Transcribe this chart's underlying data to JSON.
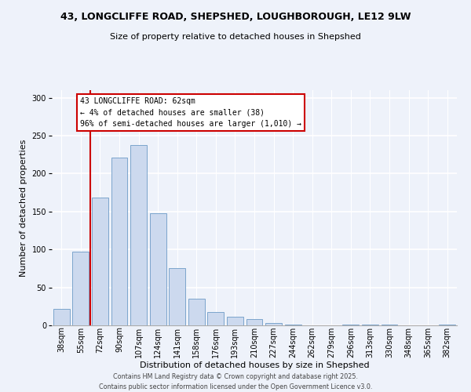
{
  "title_line1": "43, LONGCLIFFE ROAD, SHEPSHED, LOUGHBOROUGH, LE12 9LW",
  "title_line2": "Size of property relative to detached houses in Shepshed",
  "xlabel": "Distribution of detached houses by size in Shepshed",
  "ylabel": "Number of detached properties",
  "bar_labels": [
    "38sqm",
    "55sqm",
    "72sqm",
    "90sqm",
    "107sqm",
    "124sqm",
    "141sqm",
    "158sqm",
    "176sqm",
    "193sqm",
    "210sqm",
    "227sqm",
    "244sqm",
    "262sqm",
    "279sqm",
    "296sqm",
    "313sqm",
    "330sqm",
    "348sqm",
    "365sqm",
    "382sqm"
  ],
  "bar_heights": [
    22,
    97,
    168,
    221,
    238,
    148,
    75,
    35,
    18,
    11,
    8,
    3,
    1,
    0,
    0,
    1,
    1,
    1,
    0,
    0,
    1
  ],
  "bar_color": "#ccd9ee",
  "bar_edge_color": "#7ca4cc",
  "vline_x": 1.5,
  "vline_color": "#cc0000",
  "annotation_title": "43 LONGCLIFFE ROAD: 62sqm",
  "annotation_line2": "← 4% of detached houses are smaller (38)",
  "annotation_line3": "96% of semi-detached houses are larger (1,010) →",
  "annotation_box_facecolor": "#ffffff",
  "annotation_box_edgecolor": "#cc0000",
  "ylim": [
    0,
    310
  ],
  "yticks": [
    0,
    50,
    100,
    150,
    200,
    250,
    300
  ],
  "footer_line1": "Contains HM Land Registry data © Crown copyright and database right 2025.",
  "footer_line2": "Contains public sector information licensed under the Open Government Licence v3.0.",
  "bg_color": "#eef2fa",
  "grid_color": "#dde4f0",
  "title1_fontsize": 9.0,
  "title2_fontsize": 8.0,
  "xlabel_fontsize": 8.0,
  "ylabel_fontsize": 8.0,
  "tick_fontsize": 7.0,
  "footer_fontsize": 5.8
}
